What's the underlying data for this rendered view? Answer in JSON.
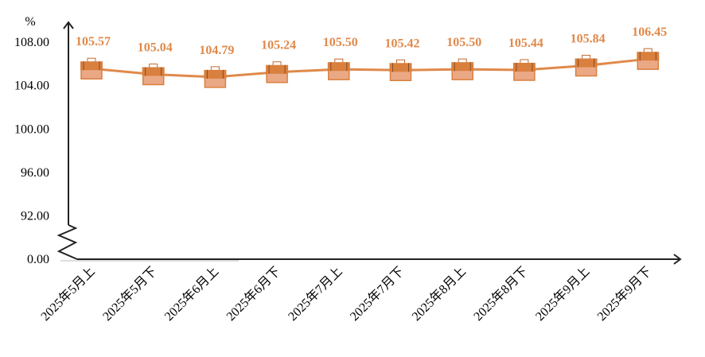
{
  "chart_data": {
    "type": "line",
    "title": "",
    "xlabel": "",
    "ylabel": "%",
    "categories": [
      "2025年5月上",
      "2025年5月下",
      "2025年6月上",
      "2025年6月下",
      "2025年7月上",
      "2025年7月下",
      "2025年8月上",
      "2025年8月下",
      "2025年9月上",
      "2025年9月下"
    ],
    "values": [
      105.57,
      105.04,
      104.79,
      105.24,
      105.5,
      105.42,
      105.5,
      105.44,
      105.84,
      106.45
    ],
    "data_labels": [
      "105.57",
      "105.04",
      "104.79",
      "105.24",
      "105.50",
      "105.42",
      "105.50",
      "105.44",
      "105.84",
      "106.45"
    ],
    "y_ticks": [
      "0.00",
      "92.00",
      "96.00",
      "100.00",
      "104.00",
      "108.00"
    ],
    "y_tick_values": [
      0,
      92,
      96,
      100,
      104,
      108
    ],
    "ylim": [
      92,
      108
    ],
    "axis_break": true,
    "grid": false,
    "colors": {
      "line": "#e0894a",
      "label": "#e0894a",
      "axis": "#222222",
      "icon_top": "#d9803e",
      "icon_bottom": "#eba885"
    },
    "marker_icon": "briefcase-icon"
  }
}
